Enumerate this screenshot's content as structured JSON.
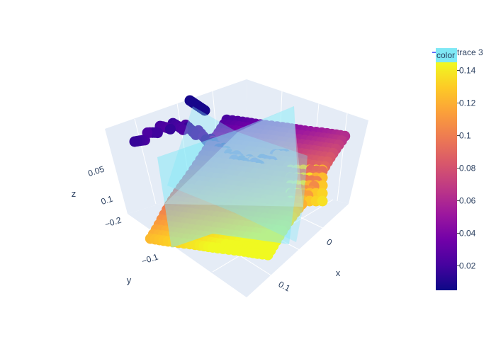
{
  "chart_data": {
    "type": "scatter3d",
    "axes": {
      "x": {
        "title": "x",
        "ticks": [
          {
            "value": 0,
            "label": "0"
          },
          {
            "value": 0.1,
            "label": "0.1"
          }
        ]
      },
      "y": {
        "title": "y",
        "ticks": [
          {
            "value": -0.2,
            "label": "−0.2"
          },
          {
            "value": -0.1,
            "label": "−0.1"
          }
        ]
      },
      "z": {
        "title": "z",
        "ticks": [
          {
            "value": 0.05,
            "label": "0.05"
          },
          {
            "value": 0.1,
            "label": "0.1"
          }
        ]
      }
    },
    "colorbar": {
      "title": "color",
      "range": [
        0.005,
        0.145
      ],
      "ticks": [
        {
          "value": 0.02,
          "label": "0.02"
        },
        {
          "value": 0.04,
          "label": "0.04"
        },
        {
          "value": 0.06,
          "label": "0.06"
        },
        {
          "value": 0.08,
          "label": "0.08"
        },
        {
          "value": 0.1,
          "label": "0.1"
        },
        {
          "value": 0.12,
          "label": "0.12"
        },
        {
          "value": 0.14,
          "label": "0.14"
        }
      ],
      "colorscale": [
        "#0d0887",
        "#46039f",
        "#7201a8",
        "#9c179e",
        "#bd3786",
        "#d8576b",
        "#ed7953",
        "#fb9f3a",
        "#fdca26",
        "#f0f921"
      ]
    },
    "legend": {
      "entries": [
        "trace 3"
      ],
      "placement": "top-right"
    },
    "plane_color": "#7fe8f5"
  }
}
